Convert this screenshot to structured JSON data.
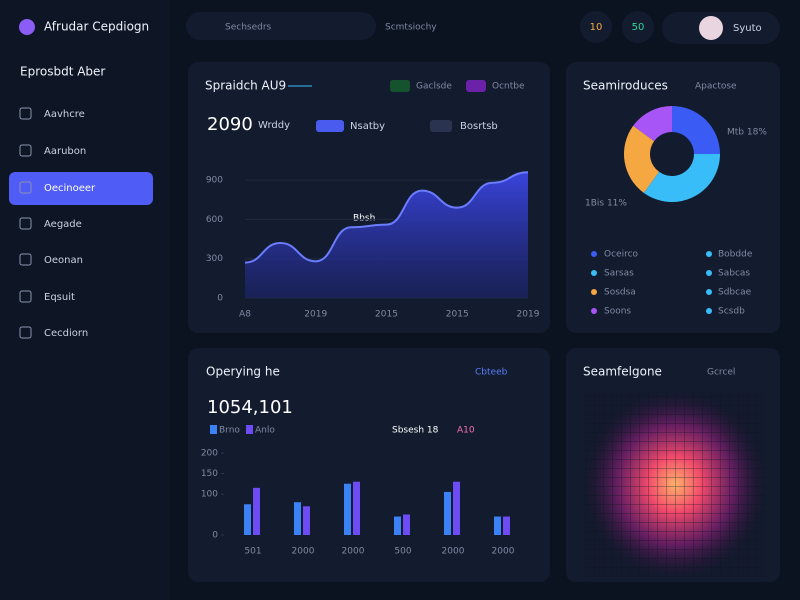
{
  "sidebar": {
    "brand": "Afrudar Cepdiogn",
    "section": "Eprosbdt Aber",
    "items": [
      "Aavhcre",
      "Aarubon",
      "Oecinoeer",
      "Aegade",
      "Oeonan",
      "Eqsuit",
      "Cecdiorn"
    ]
  },
  "topbar": {
    "search": "Sechsedrs",
    "tab": "Scmtsiochy",
    "badges": [
      "10",
      "50"
    ],
    "user": "Syuto"
  },
  "area_card": {
    "chips": [
      "Gaclsde",
      "Ocntbe"
    ],
    "big": "2090",
    "sub": "Wrddy",
    "other_legend": "Bosrtsb",
    "annotation": "Bbsh"
  },
  "donut_card": {
    "link": "Apactose",
    "annotations": [
      "Mtb 18%",
      "1Bis 11%"
    ],
    "right_legend": [
      "Bobdde",
      "Sabcas",
      "Sdbcae",
      "Scsdb"
    ]
  },
  "bar_card": {
    "link": "Cbteeb",
    "big": "1054,101",
    "note": "Sbsesh 18",
    "note2": "A10"
  },
  "heat_card": {
    "title": "Seamfelgone",
    "link": "Gcrcel"
  },
  "chart_data": [
    {
      "type": "area",
      "title": "Spraidch AU9",
      "categories": [
        "A8",
        null,
        "2019",
        null,
        "2015",
        null,
        "2015",
        null,
        "2019"
      ],
      "series": [
        {
          "name": "Nsatby",
          "color": "#4a5cf0",
          "values": [
            270,
            420,
            280,
            540,
            560,
            820,
            690,
            880,
            960
          ]
        }
      ],
      "ylim": [
        0,
        1000
      ],
      "yticks": [
        0,
        300,
        600,
        900
      ],
      "grid": true
    },
    {
      "type": "bar",
      "title": "Operying he",
      "categories": [
        "501",
        "2000",
        "2000",
        "500",
        "2000",
        "2000"
      ],
      "series": [
        {
          "name": "Brno",
          "color": "#3b82f6",
          "values": [
            75,
            80,
            125,
            45,
            105,
            45
          ]
        },
        {
          "name": "Anlo",
          "color": "#6d4cf5",
          "values": [
            115,
            70,
            130,
            50,
            130,
            45
          ]
        }
      ],
      "ylim": [
        0,
        200
      ],
      "yticks": [
        0,
        100,
        150,
        200
      ],
      "grid": false
    },
    {
      "type": "pie",
      "title": "Seamiroduces",
      "categories": [
        "Oceirco",
        "Sarsas",
        "Sosdsa",
        "Soons"
      ],
      "colors": [
        "#3b5bf5",
        "#38bdf8",
        "#f5a742",
        "#a855f7"
      ],
      "values": [
        25,
        35,
        25,
        15
      ]
    }
  ]
}
